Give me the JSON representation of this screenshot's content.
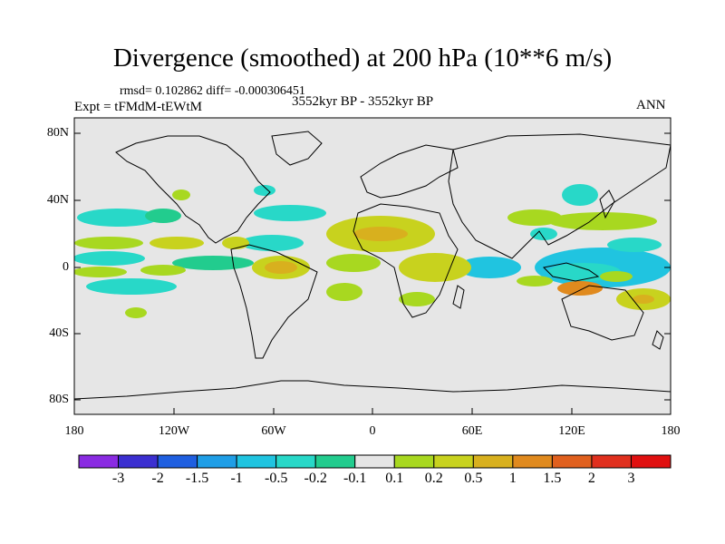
{
  "title": "Divergence (smoothed) at 200 hPa (10**6 m/s)",
  "stats": "rmsd= 0.102862 diff= -0.000306451",
  "experiment": "Expt = tFMdM-tEWtM",
  "period": "3552kyr BP - 3552kyr BP",
  "season": "ANN",
  "y_axis": {
    "ticks": [
      "80N",
      "40N",
      "0",
      "40S",
      "80S"
    ]
  },
  "x_axis": {
    "ticks": [
      "180",
      "120W",
      "60W",
      "0",
      "60E",
      "120E",
      "180"
    ]
  },
  "colorbar": {
    "labels": [
      "-3",
      "-2",
      "-1.5",
      "-1",
      "-0.5",
      "-0.2",
      "-0.1",
      "0.1",
      "0.2",
      "0.5",
      "1",
      "1.5",
      "2",
      "3"
    ],
    "colors": [
      "#8a2be2",
      "#3b2fd0",
      "#1f5fe0",
      "#1f9ee6",
      "#20c4e0",
      "#28d8c8",
      "#22cc8e",
      "#e5e5e5",
      "#a8d820",
      "#c8d21e",
      "#d8b01e",
      "#e08a1e",
      "#e0601e",
      "#e0301e",
      "#e01010"
    ]
  },
  "colors": {
    "background": "#e6e6e6",
    "coast": "#000000"
  }
}
